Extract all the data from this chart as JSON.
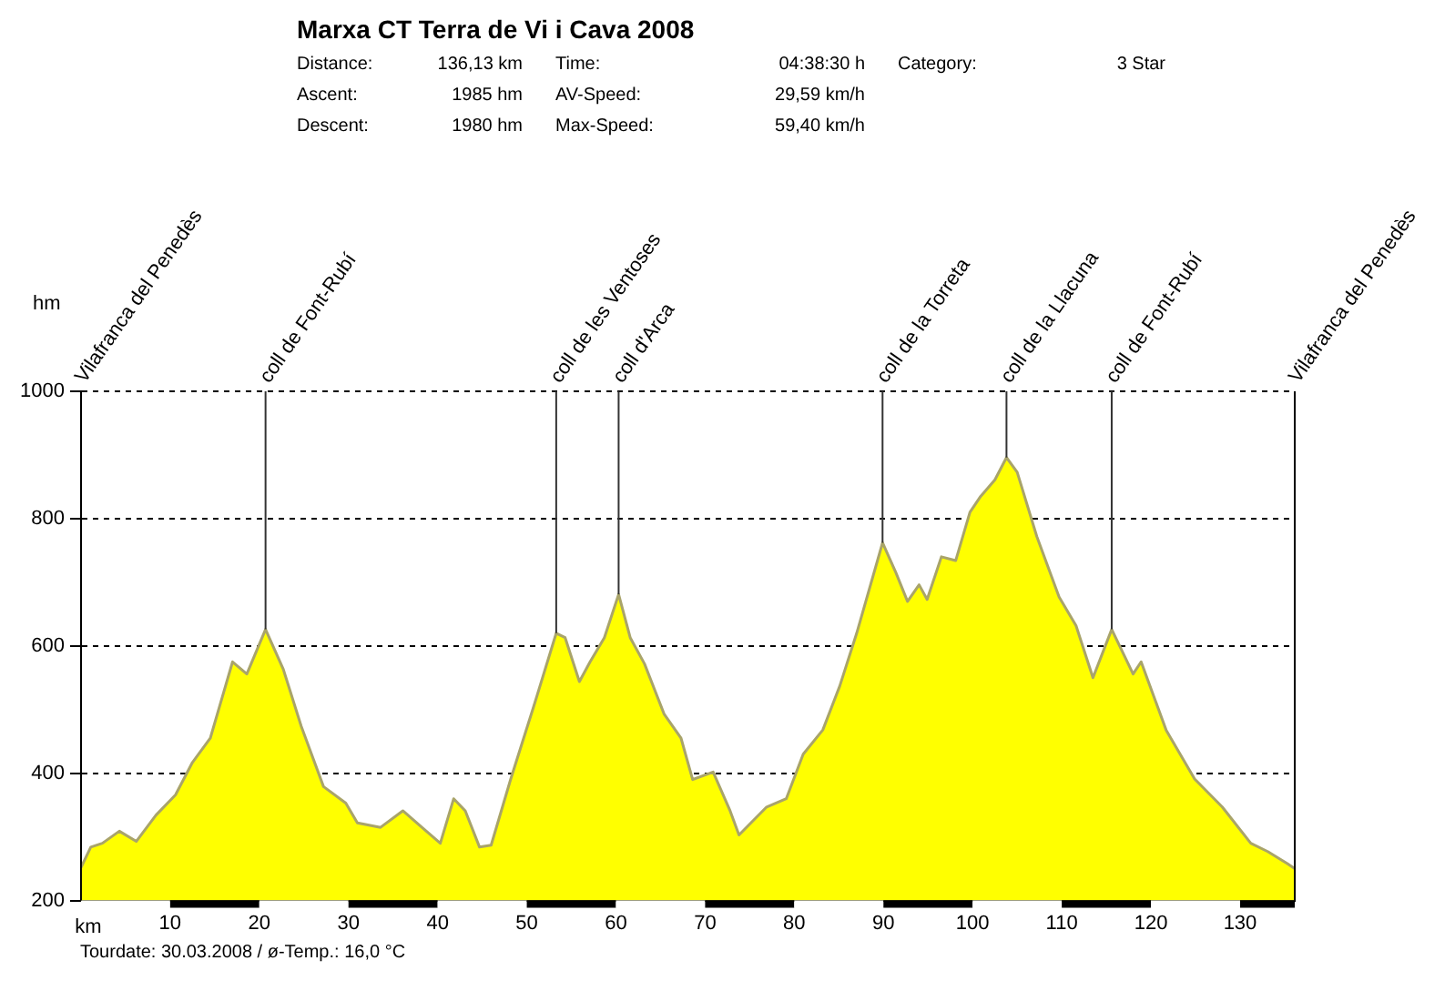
{
  "chart_data": {
    "type": "area",
    "title": "Marxa CT Terra de Vi i Cava 2008",
    "xlabel": "km",
    "ylabel": "hm",
    "annotations": [
      "Distance:",
      "136,13 km",
      "Time:",
      "04:38:30 h",
      "Category:",
      "3 Star",
      "Ascent:",
      "1985 hm",
      "AV-Speed:",
      "29,59 km/h",
      "Descent:",
      "1980 hm",
      "Max-Speed:",
      "59,40 km/h",
      "Tourdate: 30.03.2008  /  ø-Temp.: 16,0 °C",
      "Vilafranca del Penedès",
      "Vilafranca del Penedès",
      {
        "text": "coll de Font-Rubí",
        "x": 20.7,
        "y": 626
      },
      {
        "text": "coll de les Ventoses",
        "x": 53.3,
        "y": 620
      },
      {
        "text": "coll d'Arca",
        "x": 60.3,
        "y": 681
      },
      {
        "text": "coll de la Torreta",
        "x": 89.9,
        "y": 762
      },
      {
        "text": "coll de la Llacuna",
        "x": 103.8,
        "y": 896
      },
      {
        "text": "coll de Font-Rubí",
        "x": 115.6,
        "y": 626
      }
    ],
    "x": [
      0,
      1.1,
      2.4,
      4.3,
      6.2,
      8.4,
      10.6,
      12.5,
      14.5,
      17.0,
      18.6,
      20.7,
      22.7,
      24.7,
      27.2,
      29.7,
      31.0,
      33.6,
      36.1,
      38.0,
      40.3,
      41.8,
      43.1,
      44.7,
      46.0,
      48.2,
      50.8,
      53.3,
      54.3,
      55.9,
      57.1,
      58.7,
      60.3,
      61.6,
      63.2,
      65.4,
      67.3,
      68.6,
      70.9,
      72.8,
      73.8,
      76.9,
      79.1,
      81.0,
      83.2,
      85.1,
      87.0,
      89.9,
      91.4,
      92.7,
      94.0,
      94.9,
      96.5,
      98.1,
      99.7,
      100.9,
      102.5,
      103.8,
      105.0,
      107.2,
      109.7,
      111.6,
      113.5,
      115.6,
      118.0,
      118.9,
      121.7,
      124.9,
      128.0,
      131.2,
      133.1,
      135.3,
      136.13
    ],
    "series": [
      {
        "color": "#ffff00",
        "values": [
          252,
          284,
          290,
          309,
          293,
          334,
          366,
          417,
          455,
          575,
          556,
          626,
          563,
          474,
          379,
          353,
          322,
          315,
          341,
          318,
          290,
          360,
          341,
          284,
          287,
          391,
          506,
          620,
          613,
          544,
          575,
          613,
          681,
          613,
          572,
          493,
          455,
          390,
          402,
          341,
          303,
          347,
          360,
          430,
          468,
          537,
          620,
          762,
          715,
          670,
          696,
          673,
          740,
          734,
          810,
          835,
          861,
          896,
          873,
          772,
          677,
          632,
          550,
          626,
          556,
          575,
          468,
          391,
          347,
          290,
          277,
          258,
          250
        ]
      }
    ],
    "xlim": [
      0,
      136.13
    ],
    "xticks": [
      10,
      20,
      30,
      40,
      50,
      60,
      70,
      80,
      90,
      100,
      110,
      120,
      130
    ],
    "ylim": [
      200,
      1000
    ],
    "yticks": [
      200,
      400,
      600,
      800,
      1000
    ],
    "grid": "y"
  }
}
